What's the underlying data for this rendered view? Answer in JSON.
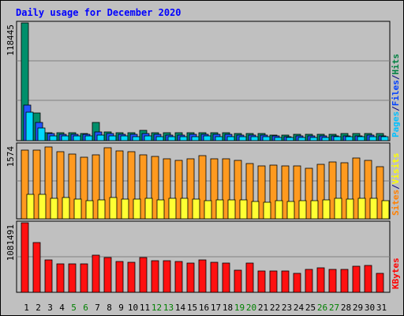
{
  "chart_data": {
    "type": "bar",
    "title": "Daily usage for December 2020",
    "categories": [
      "1",
      "2",
      "3",
      "4",
      "5",
      "6",
      "7",
      "8",
      "9",
      "10",
      "11",
      "12",
      "13",
      "14",
      "15",
      "16",
      "17",
      "18",
      "19",
      "20",
      "21",
      "22",
      "23",
      "24",
      "25",
      "26",
      "27",
      "28",
      "29",
      "30",
      "31"
    ],
    "weekend_days": [
      "5",
      "6",
      "12",
      "13",
      "19",
      "20",
      "26",
      "27"
    ],
    "panels": [
      {
        "name": "hits-files-pages",
        "max_label": "118445",
        "ylim": [
          0,
          118445
        ],
        "legend": [
          {
            "text": "Pages",
            "color": "#00c0ff"
          },
          {
            "text": "/",
            "color": "#000080"
          },
          {
            "text": "Files",
            "color": "#0040ff"
          },
          {
            "text": "/",
            "color": "#000080"
          },
          {
            "text": "Hits",
            "color": "#008040"
          }
        ],
        "series": [
          {
            "name": "Hits",
            "color": "#008f6b",
            "values": [
              118445,
              28000,
              8000,
              7800,
              7800,
              7500,
              18000,
              8800,
              8000,
              7600,
              10000,
              8000,
              7600,
              7600,
              7800,
              8000,
              8000,
              7800,
              6800,
              6800,
              6800,
              5800,
              5600,
              6000,
              6000,
              6000,
              6400,
              6800,
              6800,
              7200,
              6800
            ]
          },
          {
            "name": "Files",
            "color": "#2255ff",
            "values": [
              36000,
              18000,
              6800,
              6400,
              6400,
              6200,
              9000,
              6800,
              6200,
              6000,
              7200,
              6000,
              5800,
              5800,
              6000,
              6000,
              6000,
              6000,
              5200,
              5200,
              5200,
              4400,
              4200,
              4600,
              4600,
              4600,
              4800,
              5000,
              5000,
              5200,
              5000
            ]
          },
          {
            "name": "Pages",
            "color": "#00d8ff",
            "values": [
              29000,
              13000,
              5000,
              4600,
              4600,
              4400,
              5200,
              4800,
              4400,
              4300,
              4800,
              4300,
              4200,
              4200,
              4300,
              4400,
              4300,
              4200,
              3800,
              3800,
              3800,
              3300,
              3200,
              3400,
              3400,
              3400,
              3600,
              3700,
              3700,
              3800,
              3700
            ]
          }
        ]
      },
      {
        "name": "visits-sites",
        "max_label": "1574",
        "ylim": [
          0,
          1574
        ],
        "legend": [
          {
            "text": "Sites",
            "color": "#ff8000"
          },
          {
            "text": "/",
            "color": "#000080"
          },
          {
            "text": "Visits",
            "color": "#ffff00"
          }
        ],
        "series": [
          {
            "name": "Visits",
            "color": "#ff9a1f",
            "values": [
              1450,
              1450,
              1520,
              1420,
              1370,
              1300,
              1350,
              1510,
              1440,
              1430,
              1350,
              1320,
              1270,
              1240,
              1280,
              1340,
              1270,
              1270,
              1240,
              1170,
              1120,
              1140,
              1120,
              1120,
              1080,
              1150,
              1210,
              1190,
              1290,
              1240,
              1110
            ]
          },
          {
            "name": "Sites",
            "color": "#ffff33",
            "values": [
              520,
              520,
              430,
              450,
              420,
              390,
              400,
              450,
              420,
              420,
              430,
              410,
              430,
              430,
              420,
              390,
              400,
              400,
              410,
              370,
              360,
              380,
              370,
              390,
              390,
              400,
              430,
              420,
              440,
              430,
              380
            ]
          }
        ]
      },
      {
        "name": "kbytes",
        "max_label": "1081491",
        "ylim": [
          0,
          1081491
        ],
        "legend": [
          {
            "text": "KBytes",
            "color": "#ff0000"
          }
        ],
        "series": [
          {
            "name": "KBytes",
            "color": "#ff1010",
            "values": [
              1081491,
              780000,
              500000,
              440000,
              440000,
              440000,
              580000,
              540000,
              480000,
              470000,
              540000,
              490000,
              490000,
              480000,
              450000,
              500000,
              470000,
              460000,
              350000,
              450000,
              330000,
              330000,
              330000,
              300000,
              360000,
              380000,
              360000,
              360000,
              410000,
              420000,
              300000
            ]
          }
        ]
      }
    ]
  },
  "colors": {
    "background": "#c0c0c0",
    "title": "#0000ff",
    "axis_label": "#000000",
    "weekday_label": "#000000",
    "weekend_label": "#008000",
    "gridline": "#808080",
    "bar_outline": "#000000"
  }
}
